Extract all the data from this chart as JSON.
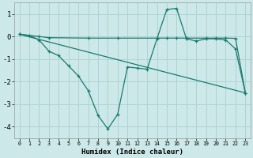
{
  "xlabel": "Humidex (Indice chaleur)",
  "background_color": "#cce8e8",
  "grid_color": "#aacfcf",
  "line_color": "#1a7a6e",
  "x_ticks": [
    0,
    1,
    2,
    3,
    4,
    5,
    6,
    7,
    8,
    9,
    10,
    11,
    12,
    13,
    14,
    15,
    16,
    17,
    18,
    19,
    20,
    21,
    22,
    23
  ],
  "y_ticks": [
    -4,
    -3,
    -2,
    -1,
    0,
    1
  ],
  "xlim": [
    -0.5,
    23.5
  ],
  "ylim": [
    -4.5,
    1.5
  ],
  "line1_x": [
    0,
    1,
    2,
    3,
    4,
    5,
    6,
    7,
    8,
    9,
    10,
    11,
    12,
    13,
    14,
    15,
    16,
    17,
    18,
    19,
    20,
    21,
    22,
    23
  ],
  "line1_y": [
    0.1,
    0.05,
    -0.15,
    -0.65,
    -0.85,
    -1.3,
    -1.75,
    -2.4,
    -3.5,
    -4.1,
    -3.45,
    -1.35,
    -1.4,
    -1.45,
    -0.1,
    1.2,
    1.25,
    -0.1,
    -0.2,
    -0.1,
    -0.1,
    -0.15,
    -0.55,
    -2.5
  ],
  "line2_x": [
    0,
    2,
    3,
    7,
    10,
    14,
    15,
    16,
    17,
    19,
    20,
    21,
    22,
    23
  ],
  "line2_y": [
    0.1,
    0.0,
    -0.05,
    -0.07,
    -0.07,
    -0.07,
    -0.07,
    -0.07,
    -0.07,
    -0.07,
    -0.07,
    -0.07,
    -0.08,
    -2.5
  ],
  "line3_x": [
    0,
    23
  ],
  "line3_y": [
    0.1,
    -2.5
  ]
}
